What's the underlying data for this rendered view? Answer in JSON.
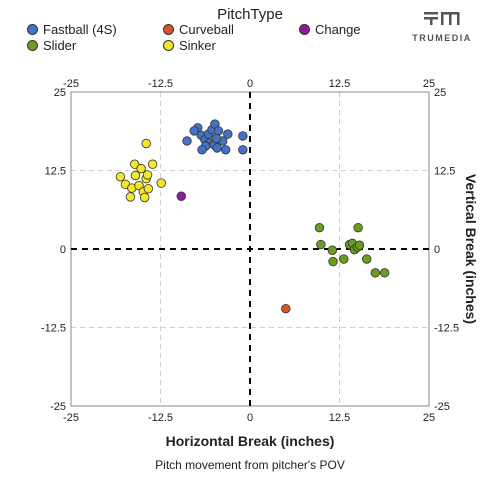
{
  "legend": {
    "title": "PitchType",
    "items": [
      {
        "label": "Fastball (4S)",
        "color": "#4472C4"
      },
      {
        "label": "Curveball",
        "color": "#D9542C"
      },
      {
        "label": "Change",
        "color": "#8E1C9A"
      },
      {
        "label": "Slider",
        "color": "#6B9E1F"
      },
      {
        "label": "Sinker",
        "color": "#F2E72A"
      }
    ]
  },
  "brand": {
    "name": "TRUMEDIA"
  },
  "caption": "Pitch movement from pitcher's POV",
  "chart_data": {
    "type": "scatter",
    "xlabel": "Horizontal Break (inches)",
    "ylabel": "Vertical Break (inches)",
    "xlim": [
      -25,
      25
    ],
    "ylim": [
      -25,
      25
    ],
    "xticks": [
      "-25",
      "-12.5",
      "0",
      "12.5",
      "25"
    ],
    "yticks": [
      "25",
      "12.5",
      "0",
      "-12.5",
      "-25"
    ],
    "grid": true,
    "legend_position": "top",
    "series": [
      {
        "name": "Fastball (4S)",
        "color": "#4472C4",
        "points": [
          [
            -7.3,
            19.3
          ],
          [
            -6.8,
            18.1
          ],
          [
            -6.3,
            17.4
          ],
          [
            -5.8,
            18.3
          ],
          [
            -5.3,
            19.0
          ],
          [
            -4.9,
            19.9
          ],
          [
            -4.4,
            18.8
          ],
          [
            -3.8,
            17.2
          ],
          [
            -3.1,
            18.3
          ],
          [
            -5.6,
            16.9
          ],
          [
            -6.2,
            16.4
          ],
          [
            -6.7,
            15.8
          ],
          [
            -5.0,
            16.6
          ],
          [
            -4.6,
            16.1
          ],
          [
            -3.4,
            15.8
          ],
          [
            -1.0,
            18.0
          ],
          [
            -1.0,
            15.8
          ],
          [
            -7.8,
            18.8
          ],
          [
            -8.8,
            17.2
          ],
          [
            -4.7,
            17.6
          ]
        ]
      },
      {
        "name": "Curveball",
        "color": "#D9542C",
        "points": [
          [
            5.0,
            -9.5
          ]
        ]
      },
      {
        "name": "Change",
        "color": "#8E1C9A",
        "points": [
          [
            -9.6,
            8.4
          ]
        ]
      },
      {
        "name": "Slider",
        "color": "#6B9E1F",
        "points": [
          [
            9.7,
            3.4
          ],
          [
            9.9,
            0.7
          ],
          [
            11.5,
            -0.2
          ],
          [
            11.6,
            -2.0
          ],
          [
            13.1,
            -1.6
          ],
          [
            13.9,
            0.7
          ],
          [
            14.3,
            0.9
          ],
          [
            14.6,
            -0.1
          ],
          [
            15.0,
            0.3
          ],
          [
            15.3,
            0.6
          ],
          [
            15.1,
            3.4
          ],
          [
            16.3,
            -1.6
          ],
          [
            17.5,
            -3.8
          ],
          [
            18.8,
            -3.8
          ]
        ]
      },
      {
        "name": "Sinker",
        "color": "#F2E72A",
        "points": [
          [
            -18.1,
            11.5
          ],
          [
            -17.4,
            10.3
          ],
          [
            -16.5,
            9.7
          ],
          [
            -16.0,
            11.7
          ],
          [
            -16.1,
            13.5
          ],
          [
            -15.5,
            10.1
          ],
          [
            -15.2,
            12.8
          ],
          [
            -14.9,
            9.1
          ],
          [
            -14.5,
            11.2
          ],
          [
            -14.3,
            11.8
          ],
          [
            -14.2,
            9.6
          ],
          [
            -13.6,
            13.5
          ],
          [
            -16.7,
            8.3
          ],
          [
            -14.7,
            8.2
          ],
          [
            -14.5,
            16.8
          ],
          [
            -12.4,
            10.5
          ]
        ]
      }
    ]
  }
}
